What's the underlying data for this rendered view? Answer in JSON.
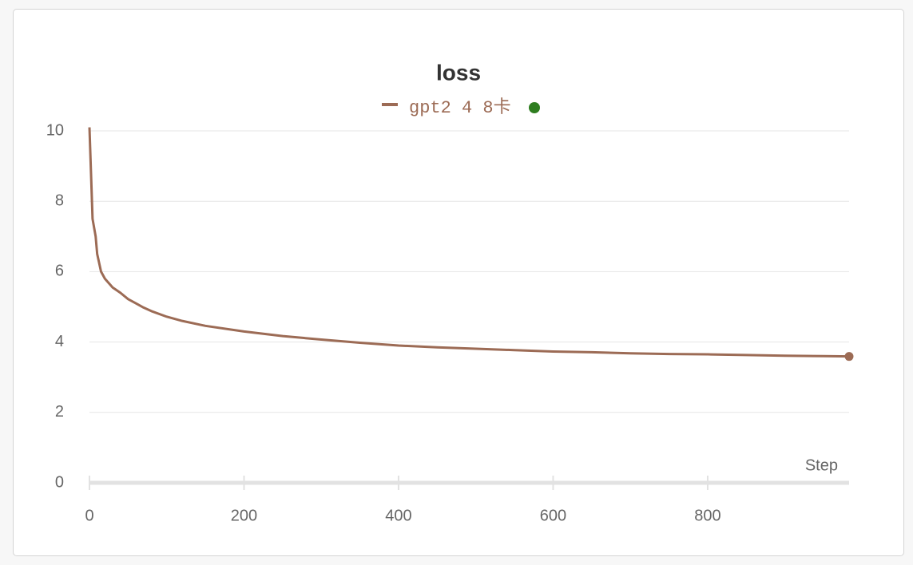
{
  "chart_data": {
    "type": "line",
    "title": "loss",
    "x_label": "Step",
    "x": [
      0,
      2,
      4,
      8,
      10,
      15,
      20,
      30,
      40,
      50,
      60,
      70,
      80,
      100,
      120,
      150,
      200,
      250,
      300,
      350,
      400,
      450,
      500,
      550,
      600,
      650,
      700,
      750,
      800,
      850,
      900,
      950,
      983
    ],
    "series": [
      {
        "name": "gpt2 4 8卡",
        "color": "#9c6b55",
        "values": [
          10.1,
          8.8,
          7.5,
          7.0,
          6.5,
          6.0,
          5.8,
          5.55,
          5.4,
          5.22,
          5.1,
          4.98,
          4.88,
          4.72,
          4.6,
          4.46,
          4.3,
          4.17,
          4.07,
          3.98,
          3.9,
          3.85,
          3.81,
          3.77,
          3.73,
          3.71,
          3.68,
          3.66,
          3.65,
          3.63,
          3.61,
          3.6,
          3.59
        ]
      }
    ],
    "xlim": [
      0,
      983
    ],
    "xticks": [
      0,
      200,
      400,
      600,
      800
    ],
    "ylim": [
      0,
      10
    ],
    "yticks": [
      0,
      2,
      4,
      6,
      8,
      10
    ],
    "grid": true
  }
}
